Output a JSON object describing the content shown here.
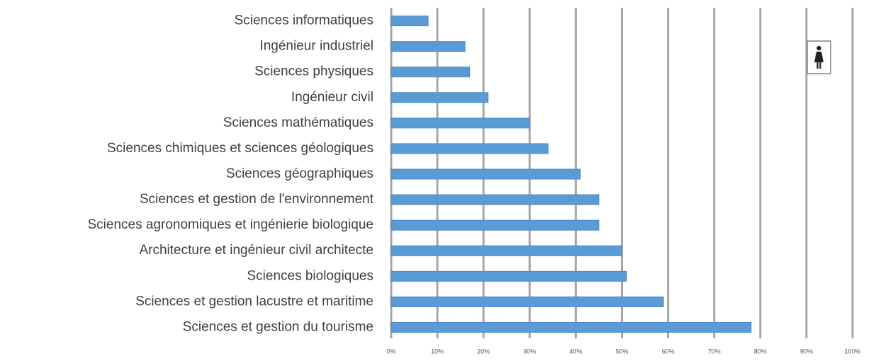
{
  "chart_data": {
    "type": "barh",
    "categories": [
      "Sciences informatiques",
      "Ingénieur industriel",
      "Sciences physiques",
      "Ingénieur civil",
      "Sciences mathématiques",
      "Sciences chimiques et sciences géologiques",
      "Sciences géographiques",
      "Sciences et gestion de l'environnement",
      "Sciences agronomiques et ingénierie biologique",
      "Architecture et ingénieur civil architecte",
      "Sciences biologiques",
      "Sciences et gestion lacustre et maritime",
      "Sciences et gestion du tourisme"
    ],
    "values": [
      8,
      16,
      17,
      21,
      30,
      34,
      41,
      45,
      45,
      50,
      51,
      59,
      78
    ],
    "color": "#5b9bd5",
    "xlim": [
      0,
      100
    ],
    "xticks": [
      {
        "value": 0,
        "label": "0%"
      },
      {
        "value": 10,
        "label": "10%"
      },
      {
        "value": 20,
        "label": "20%"
      },
      {
        "value": 30,
        "label": "30%"
      },
      {
        "value": 40,
        "label": "40%"
      },
      {
        "value": 50,
        "label": "50%"
      },
      {
        "value": 60,
        "label": "60%"
      },
      {
        "value": 70,
        "label": "70%"
      },
      {
        "value": 80,
        "label": "80%"
      },
      {
        "value": 90,
        "label": "90%"
      },
      {
        "value": 100,
        "label": "100%"
      }
    ],
    "grid": true
  }
}
